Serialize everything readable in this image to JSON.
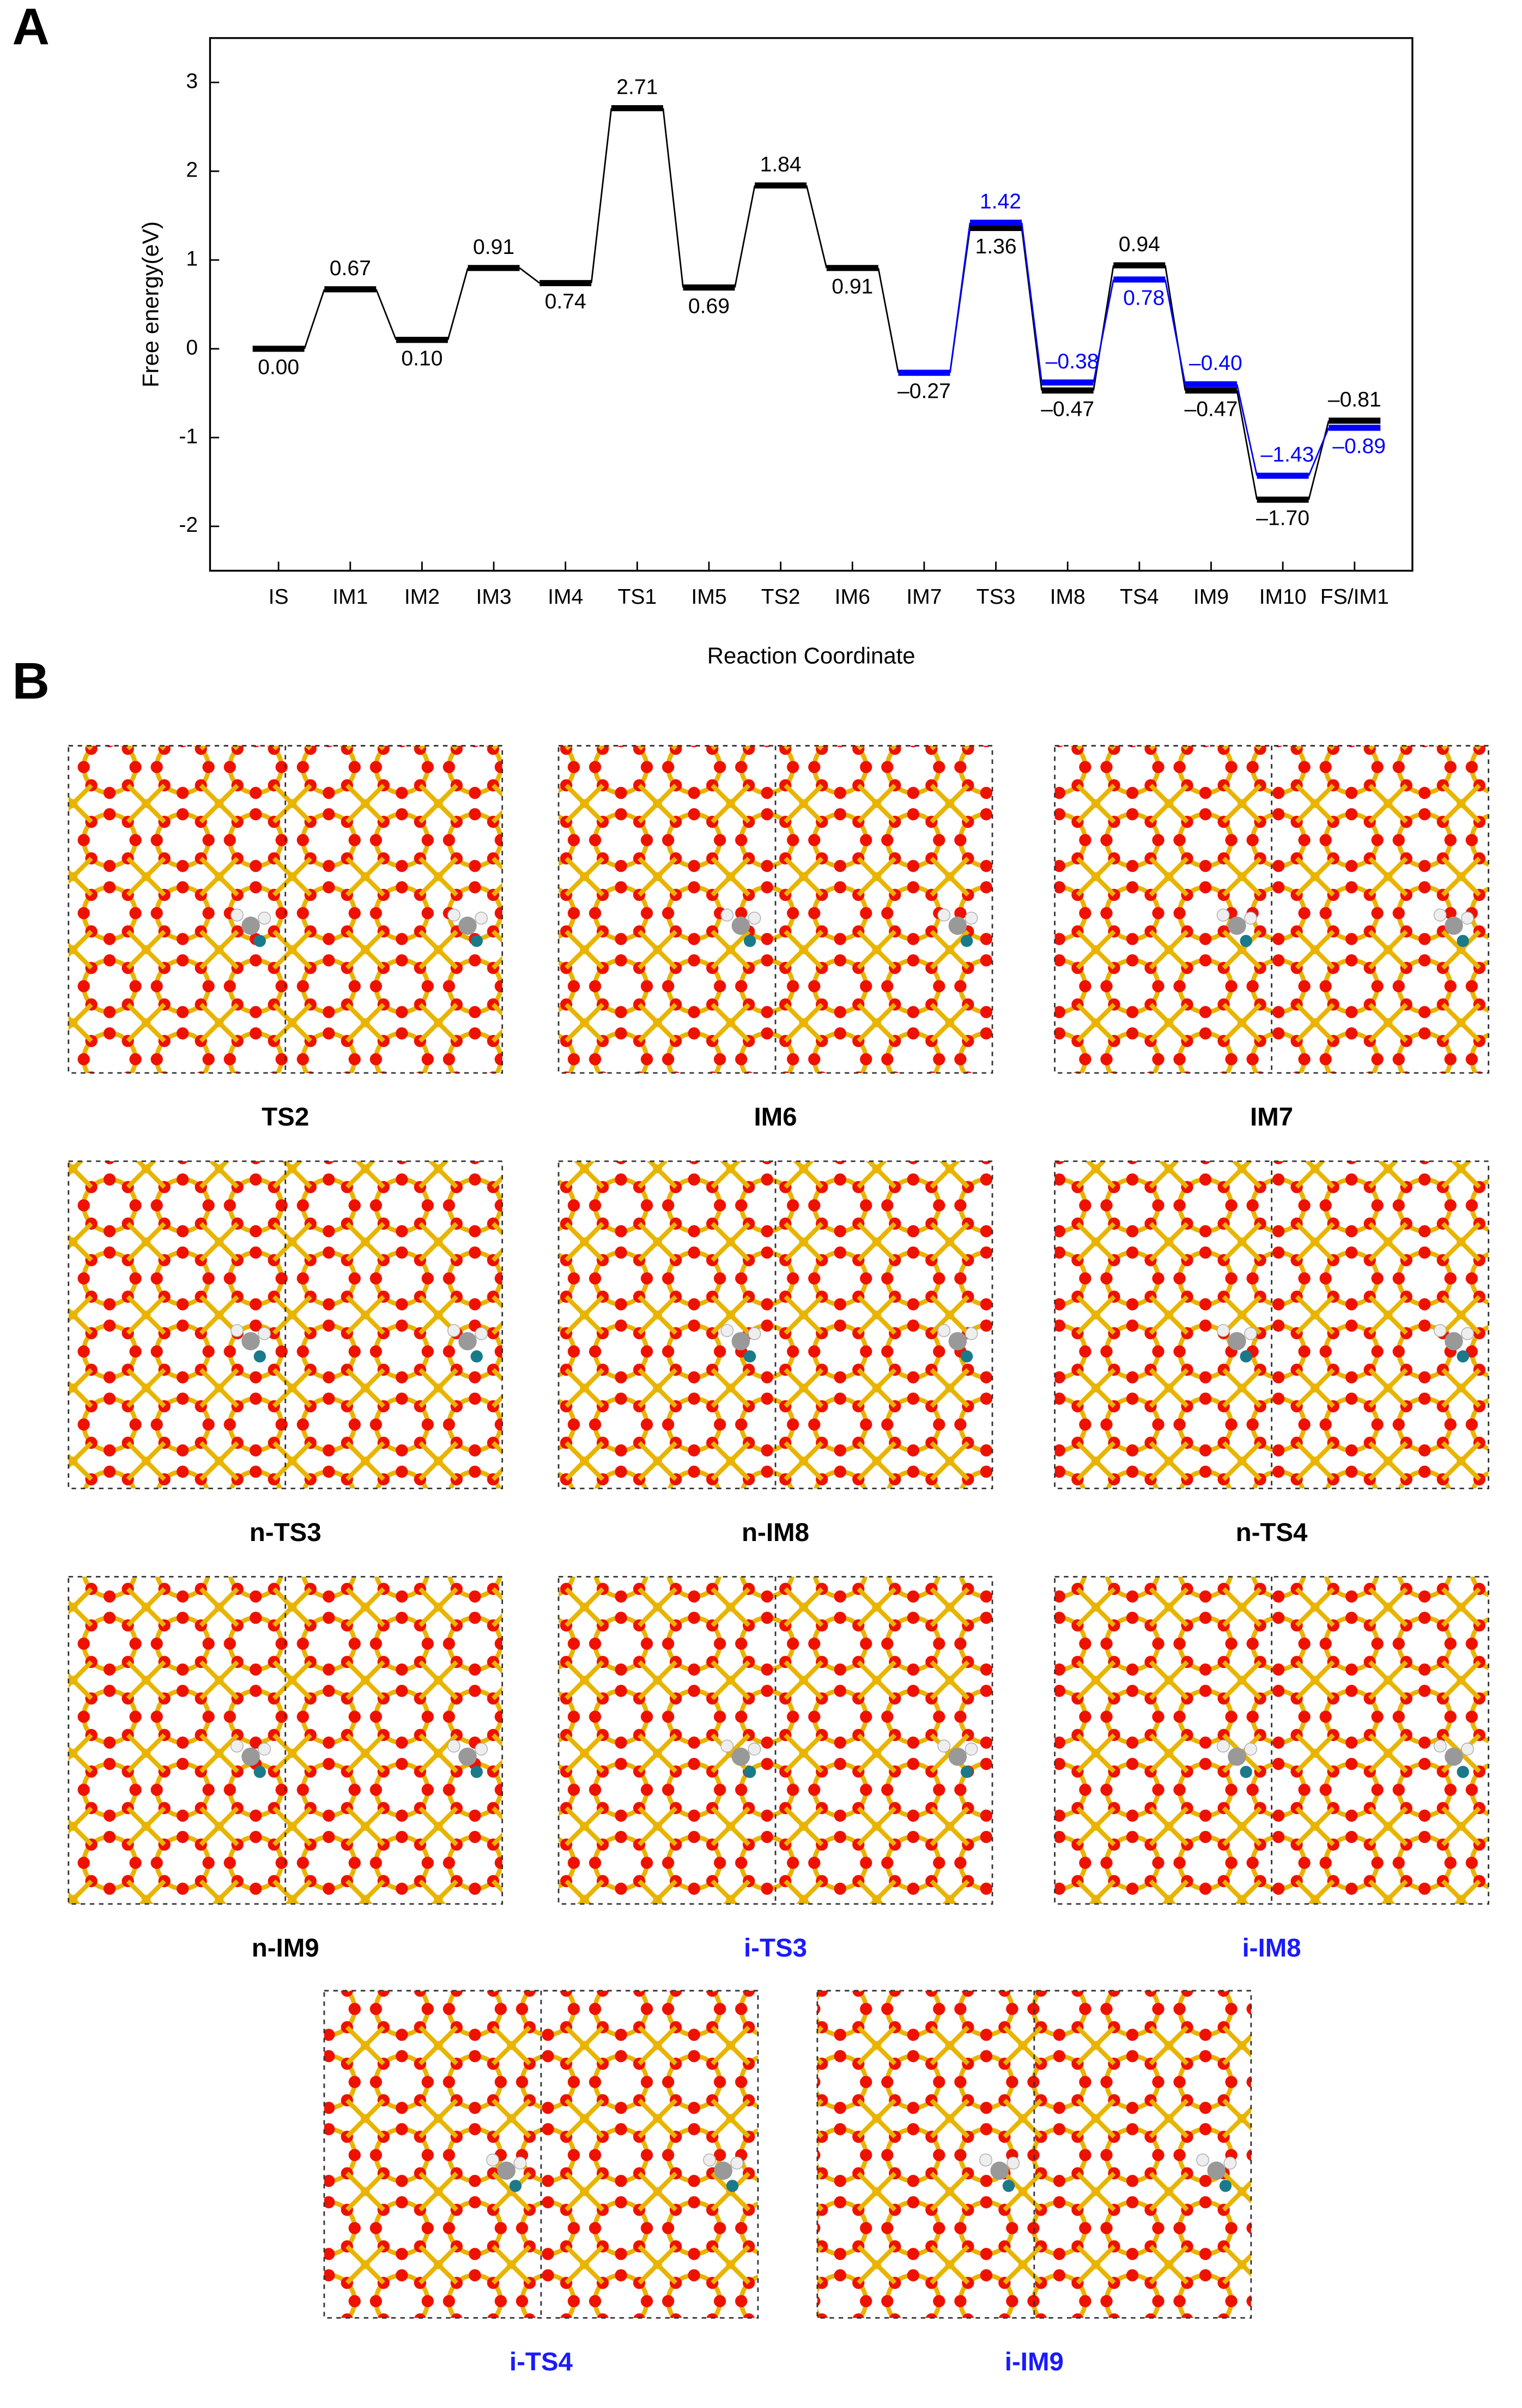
{
  "panel_labels": [
    "A",
    "B"
  ],
  "chart_data": {
    "type": "step",
    "y_label": "Free energy(eV)",
    "x_label": "Reaction Coordinate",
    "categories": [
      "IS",
      "IM1",
      "IM2",
      "IM3",
      "IM4",
      "TS1",
      "IM5",
      "TS2",
      "IM6",
      "IM7",
      "TS3",
      "IM8",
      "TS4",
      "IM9",
      "IM10",
      "FS/IM1"
    ],
    "ylim": [
      -2.5,
      3.5
    ],
    "yticks": [
      -2,
      -1,
      0,
      1,
      2,
      3
    ],
    "grid": false,
    "series": [
      {
        "color": "#000000",
        "values": [
          0,
          0.67,
          0.1,
          0.91,
          0.74,
          2.71,
          0.69,
          1.84,
          0.91,
          -0.27,
          1.36,
          -0.47,
          0.94,
          -0.47,
          -1.7,
          -0.81
        ],
        "value_labels": [
          "0.00",
          "0.67",
          "0.10",
          "0.91",
          "0.74",
          "2.71",
          "0.69",
          "1.84",
          "0.91",
          "–0.27",
          "1.36",
          "–0.47",
          "0.94",
          "–0.47",
          "–1.70",
          "–0.81"
        ]
      },
      {
        "color": "#0000ff",
        "values": [
          null,
          null,
          null,
          null,
          null,
          null,
          null,
          null,
          null,
          -0.27,
          1.42,
          -0.38,
          0.78,
          -0.4,
          -1.43,
          -0.89
        ],
        "value_labels": [
          null,
          null,
          null,
          null,
          null,
          null,
          null,
          null,
          null,
          null,
          "1.42",
          "–0.38",
          "0.78",
          "–0.40",
          "–1.43",
          "–0.89"
        ]
      }
    ]
  },
  "structures": [
    {
      "label": "TS2",
      "color": "#000000"
    },
    {
      "label": "IM6",
      "color": "#000000"
    },
    {
      "label": "IM7",
      "color": "#000000"
    },
    {
      "label": "n-TS3",
      "color": "#000000"
    },
    {
      "label": "n-IM8",
      "color": "#000000"
    },
    {
      "label": "n-TS4",
      "color": "#000000"
    },
    {
      "label": "n-IM9",
      "color": "#000000"
    },
    {
      "label": "i-TS3",
      "color": "#1a1aff"
    },
    {
      "label": "i-IM8",
      "color": "#1a1aff"
    },
    {
      "label": "i-TS4",
      "color": "#1a1aff"
    },
    {
      "label": "i-IM9",
      "color": "#1a1aff"
    }
  ]
}
